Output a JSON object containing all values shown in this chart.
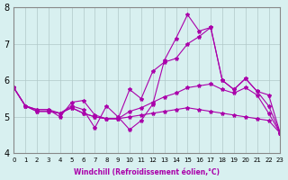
{
  "xlabel": "Windchill (Refroidissement éolien,°C)",
  "ylabel": "",
  "background_color": "#d8f0f0",
  "grid_color": "#b0c8c8",
  "line_color": "#aa00aa",
  "xlim": [
    0,
    23
  ],
  "ylim": [
    4,
    8
  ],
  "xticks": [
    0,
    1,
    2,
    3,
    4,
    5,
    6,
    7,
    8,
    9,
    10,
    11,
    12,
    13,
    14,
    15,
    16,
    17,
    18,
    19,
    20,
    21,
    22,
    23
  ],
  "yticks": [
    4,
    5,
    6,
    7,
    8
  ],
  "series": [
    [
      5.8,
      5.3,
      5.2,
      5.2,
      5.1,
      5.3,
      5.2,
      4.7,
      5.3,
      5.0,
      4.65,
      4.9,
      5.35,
      6.55,
      7.15,
      7.8,
      7.35,
      7.45,
      6.0,
      5.75,
      6.05,
      5.7,
      5.6,
      4.55
    ],
    [
      5.8,
      5.3,
      5.2,
      5.2,
      5.0,
      5.4,
      5.45,
      5.05,
      4.95,
      4.95,
      5.75,
      5.5,
      6.25,
      6.5,
      6.6,
      7.0,
      7.2,
      7.45,
      6.0,
      5.75,
      6.05,
      5.7,
      5.3,
      4.55
    ],
    [
      5.8,
      5.3,
      5.15,
      5.15,
      5.1,
      5.25,
      5.1,
      5.0,
      4.95,
      4.95,
      5.15,
      5.25,
      5.4,
      5.55,
      5.65,
      5.8,
      5.85,
      5.9,
      5.75,
      5.65,
      5.8,
      5.6,
      5.1,
      4.55
    ],
    [
      5.8,
      5.3,
      5.15,
      5.15,
      5.1,
      5.25,
      5.1,
      5.0,
      4.95,
      4.95,
      5.0,
      5.05,
      5.1,
      5.15,
      5.2,
      5.25,
      5.2,
      5.15,
      5.1,
      5.05,
      5.0,
      4.95,
      4.9,
      4.55
    ]
  ]
}
